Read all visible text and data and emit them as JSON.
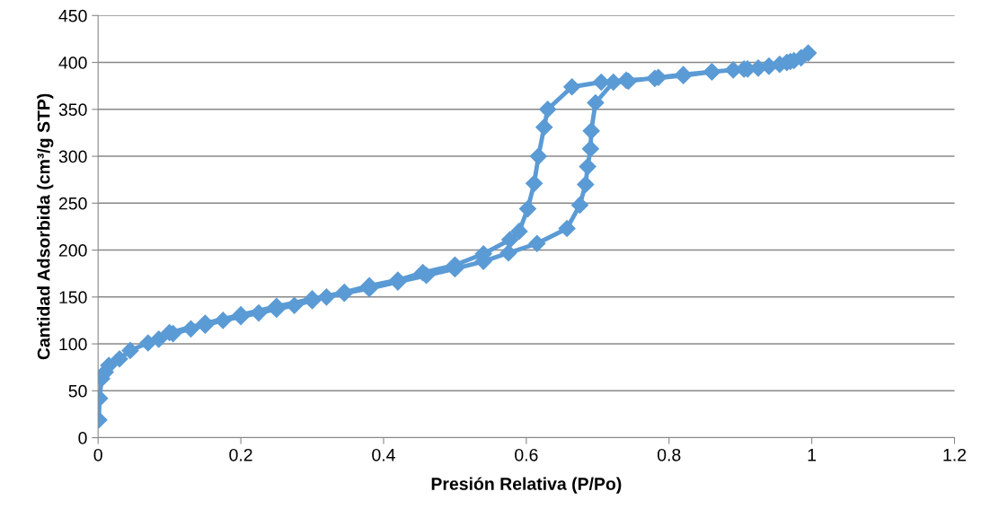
{
  "chart_data": {
    "type": "line",
    "xlabel": "Presión Relativa (P/Po)",
    "ylabel": "Cantidad Adsorbida (cm³/g STP)",
    "marker": "diamond",
    "line_style": "solid",
    "grid": "y",
    "xlim": [
      0,
      1.2
    ],
    "ylim": [
      0,
      450
    ],
    "xticks": [
      0,
      0.2,
      0.4,
      0.6,
      0.8,
      1,
      1.2
    ],
    "yticks": [
      0,
      50,
      100,
      150,
      200,
      250,
      300,
      350,
      400,
      450
    ],
    "series": [
      {
        "color": "#5b9bd5",
        "x": [
          0.001,
          0.002,
          0.005,
          0.01,
          0.015,
          0.03,
          0.045,
          0.07,
          0.085,
          0.105,
          0.13,
          0.15,
          0.175,
          0.2,
          0.225,
          0.25,
          0.275,
          0.3,
          0.32,
          0.345,
          0.38,
          0.42,
          0.46,
          0.5,
          0.54,
          0.575,
          0.615,
          0.657,
          0.675,
          0.683,
          0.686,
          0.69,
          0.691,
          0.697,
          0.722,
          0.743,
          0.785,
          0.82,
          0.86,
          0.89,
          0.91,
          0.925,
          0.94,
          0.955,
          0.965,
          0.975,
          0.985,
          0.995,
          0.97,
          0.94,
          0.905,
          0.86,
          0.82,
          0.78,
          0.74,
          0.705,
          0.664,
          0.63,
          0.625,
          0.617,
          0.611,
          0.602,
          0.59,
          0.577,
          0.54,
          0.5,
          0.455,
          0.42,
          0.38,
          0.345,
          0.3,
          0.25,
          0.2,
          0.15,
          0.1
        ],
        "values": [
          19,
          42,
          63,
          70,
          77,
          84,
          93,
          101,
          105,
          111,
          116,
          120,
          125,
          129,
          133,
          137,
          141,
          146,
          150,
          154,
          159,
          166,
          173,
          180,
          188,
          197,
          207,
          223,
          248,
          270,
          289,
          308,
          327,
          357,
          379,
          380,
          384,
          387,
          390,
          392,
          393,
          394,
          396,
          398,
          400,
          402,
          405,
          410,
          401,
          396,
          393,
          390,
          386,
          383,
          381,
          379,
          374,
          350,
          331,
          300,
          271,
          244,
          220,
          211,
          196,
          184,
          176,
          168,
          162,
          155,
          148,
          140,
          131,
          122,
          112
        ]
      }
    ]
  }
}
